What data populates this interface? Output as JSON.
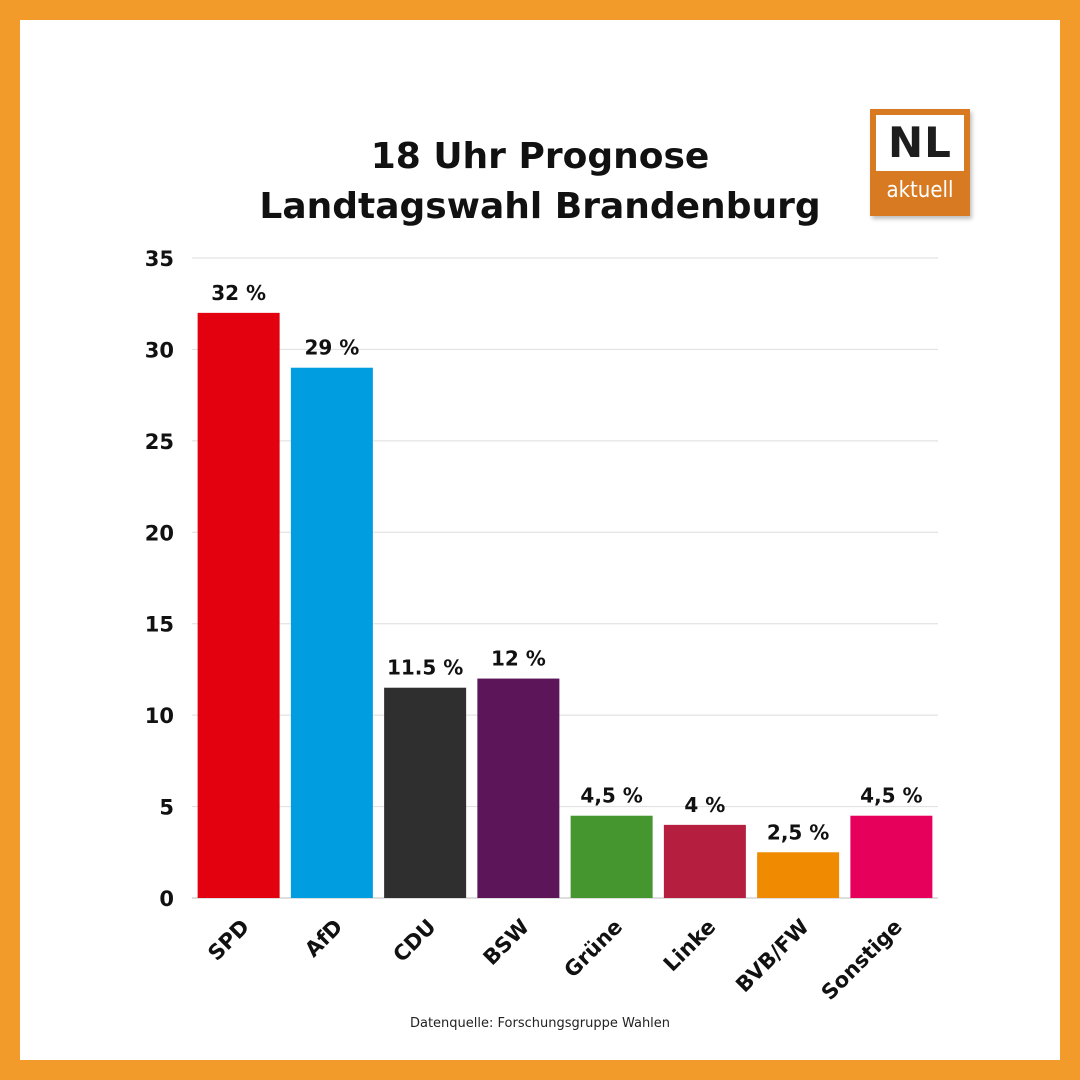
{
  "logo": {
    "top": "NL",
    "bottom": "aktuell",
    "color": "#d87a22"
  },
  "source_note": "Datenquelle: Forschungsgruppe Wahlen",
  "chart_data": {
    "type": "bar",
    "title": [
      "18 Uhr Prognose",
      "Landtagswahl Brandenburg"
    ],
    "xlabel": "",
    "ylabel": "",
    "ylim": [
      0,
      35
    ],
    "yticks": [
      "0",
      "5",
      "10",
      "15",
      "20",
      "25",
      "30",
      "35"
    ],
    "grid": true,
    "categories": [
      "SPD",
      "AfD",
      "CDU",
      "BSW",
      "Grüne",
      "Linke",
      "BVB/FW",
      "Sonstige"
    ],
    "values": [
      32,
      29,
      11.5,
      12,
      4.5,
      4,
      2.5,
      4.5
    ],
    "value_labels": [
      "32 %",
      "29 %",
      "11.5 %",
      "12 %",
      "4,5 %",
      "4 %",
      "2,5 %",
      "4,5 %"
    ],
    "colors": [
      "#e3000f",
      "#009ee0",
      "#2f2f2f",
      "#5b1558",
      "#45962f",
      "#b51e3e",
      "#f08a00",
      "#e6005c"
    ]
  }
}
